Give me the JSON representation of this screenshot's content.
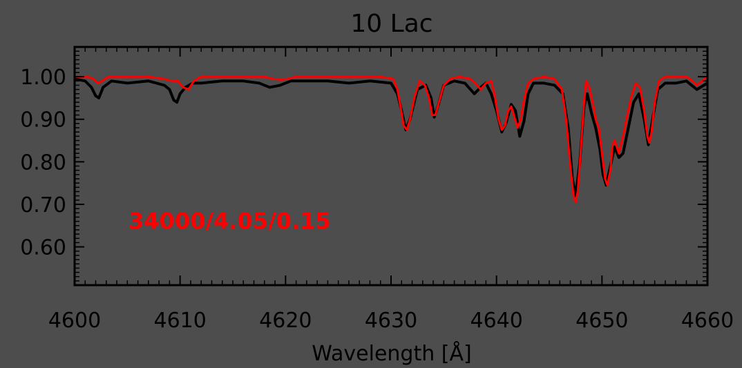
{
  "chart_data": {
    "type": "line",
    "title": "10 Lac",
    "xlabel": "Wavelength [Å]",
    "ylabel": "",
    "xlim": [
      4600,
      4660
    ],
    "ylim": [
      0.51,
      1.07
    ],
    "grid": false,
    "x_ticks": [
      4600,
      4610,
      4620,
      4630,
      4640,
      4650,
      4660
    ],
    "x_tick_labels": [
      "4600",
      "4610",
      "4620",
      "4630",
      "4640",
      "4650",
      "4660"
    ],
    "y_ticks": [
      1.0,
      0.9,
      0.8,
      0.7,
      0.6
    ],
    "y_tick_labels": [
      "1.00",
      "0.90",
      "0.80",
      "0.70",
      "0.60"
    ],
    "annotation": {
      "text": "34000/4.05/0.15",
      "color": "#ff0000"
    },
    "series": [
      {
        "color": "#000000",
        "x": [
          4600.0,
          4601.0,
          4601.6,
          4602.0,
          4602.3,
          4602.7,
          4603.5,
          4605.0,
          4607.0,
          4608.5,
          4609.0,
          4609.4,
          4609.7,
          4610.0,
          4610.5,
          4611.2,
          4612.0,
          4614.0,
          4616.0,
          4617.5,
          4618.5,
          4619.5,
          4620.5,
          4622.0,
          4624.0,
          4626.0,
          4628.0,
          4630.0,
          4630.6,
          4631.0,
          4631.4,
          4631.8,
          4632.5,
          4633.3,
          4633.8,
          4634.1,
          4634.5,
          4635.0,
          4636.0,
          4637.0,
          4637.9,
          4638.5,
          4639.0,
          4639.5,
          4640.0,
          4640.5,
          4640.9,
          4641.4,
          4641.8,
          4642.2,
          4642.6,
          4643.0,
          4643.5,
          4644.5,
          4645.5,
          4646.3,
          4646.8,
          4647.2,
          4647.5,
          4647.9,
          4648.3,
          4648.6,
          4649.0,
          4649.4,
          4649.8,
          4650.1,
          4650.4,
          4650.8,
          4651.2,
          4651.6,
          4652.0,
          4652.5,
          4653.0,
          4653.5,
          4654.0,
          4654.4,
          4654.8,
          4655.3,
          4656.0,
          4657.0,
          4658.0,
          4659.0,
          4660.0
        ],
        "y": [
          0.995,
          0.99,
          0.975,
          0.955,
          0.95,
          0.975,
          0.99,
          0.985,
          0.99,
          0.98,
          0.97,
          0.945,
          0.94,
          0.96,
          0.975,
          0.985,
          0.985,
          0.99,
          0.99,
          0.985,
          0.975,
          0.98,
          0.99,
          0.99,
          0.99,
          0.985,
          0.99,
          0.985,
          0.96,
          0.92,
          0.875,
          0.9,
          0.97,
          0.98,
          0.95,
          0.905,
          0.935,
          0.98,
          0.99,
          0.985,
          0.96,
          0.975,
          0.985,
          0.96,
          0.92,
          0.87,
          0.89,
          0.935,
          0.92,
          0.86,
          0.895,
          0.96,
          0.985,
          0.985,
          0.98,
          0.96,
          0.88,
          0.76,
          0.72,
          0.8,
          0.93,
          0.96,
          0.915,
          0.88,
          0.83,
          0.77,
          0.745,
          0.79,
          0.835,
          0.81,
          0.82,
          0.88,
          0.94,
          0.96,
          0.9,
          0.84,
          0.9,
          0.97,
          0.985,
          0.985,
          0.99,
          0.97,
          0.985
        ]
      },
      {
        "color": "#ff0000",
        "x": [
          4600.0,
          4601.2,
          4601.8,
          4602.2,
          4602.6,
          4603.2,
          4605.0,
          4607.0,
          4608.5,
          4609.2,
          4609.8,
          4610.3,
          4610.8,
          4611.3,
          4612.0,
          4614.0,
          4616.0,
          4618.0,
          4618.8,
          4619.6,
          4620.2,
          4621.0,
          4623.0,
          4625.0,
          4627.0,
          4629.0,
          4630.2,
          4630.6,
          4630.9,
          4631.2,
          4631.5,
          4631.8,
          4632.2,
          4632.7,
          4633.2,
          4633.6,
          4633.9,
          4634.2,
          4634.6,
          4635.0,
          4635.6,
          4636.5,
          4637.5,
          4638.0,
          4638.5,
          4639.0,
          4639.5,
          4639.8,
          4640.2,
          4640.5,
          4640.8,
          4641.1,
          4641.4,
          4641.7,
          4642.0,
          4642.3,
          4642.6,
          4643.0,
          4643.5,
          4644.5,
          4645.5,
          4646.2,
          4646.6,
          4647.0,
          4647.3,
          4647.5,
          4647.7,
          4648.0,
          4648.3,
          4648.5,
          4648.8,
          4649.2,
          4649.4,
          4649.7,
          4650.0,
          4650.3,
          4650.5,
          4650.8,
          4651.0,
          4651.2,
          4651.4,
          4651.6,
          4652.0,
          4652.4,
          4652.8,
          4653.2,
          4653.6,
          4654.0,
          4654.3,
          4654.5,
          4654.7,
          4655.0,
          4655.4,
          4656.0,
          4657.0,
          4658.0,
          4658.6,
          4659.0,
          4659.5,
          4660.0
        ],
        "y": [
          1.0,
          1.0,
          0.995,
          0.985,
          0.99,
          1.0,
          1.0,
          1.0,
          0.995,
          0.99,
          0.99,
          0.975,
          0.97,
          0.99,
          1.0,
          1.0,
          1.0,
          1.0,
          0.995,
          0.993,
          0.995,
          1.0,
          1.0,
          1.0,
          1.0,
          1.0,
          0.995,
          0.97,
          0.93,
          0.885,
          0.875,
          0.9,
          0.95,
          0.99,
          0.98,
          0.95,
          0.91,
          0.91,
          0.945,
          0.98,
          0.995,
          1.0,
          0.995,
          0.985,
          0.97,
          0.985,
          0.99,
          0.96,
          0.9,
          0.875,
          0.885,
          0.92,
          0.93,
          0.905,
          0.88,
          0.9,
          0.945,
          0.985,
          0.995,
          1.0,
          0.995,
          0.97,
          0.9,
          0.79,
          0.72,
          0.705,
          0.73,
          0.83,
          0.94,
          0.99,
          0.975,
          0.93,
          0.9,
          0.88,
          0.82,
          0.76,
          0.745,
          0.78,
          0.84,
          0.85,
          0.835,
          0.82,
          0.86,
          0.91,
          0.955,
          0.985,
          0.975,
          0.92,
          0.86,
          0.845,
          0.87,
          0.94,
          0.99,
          1.0,
          1.0,
          1.0,
          0.99,
          0.98,
          0.99,
          1.0
        ]
      }
    ]
  }
}
